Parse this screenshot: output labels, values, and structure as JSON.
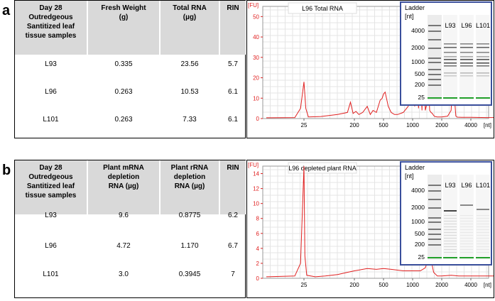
{
  "panels": [
    {
      "letter": "a",
      "table": {
        "headers": [
          "Day 28\nOutredgeous\nSantitized leaf\ntissue samples",
          "Fresh Weight\n(g)",
          "Total RNA\n(µg)",
          "RIN"
        ],
        "rows": [
          [
            "L93",
            "0.335",
            "23.56",
            "5.7"
          ],
          [
            "L96",
            "0.263",
            "10.53",
            "6.1"
          ],
          [
            "L101",
            "0.263",
            "7.33",
            "6.1"
          ]
        ]
      }
    },
    {
      "letter": "b",
      "table": {
        "headers": [
          "Day 28\nOutredgeous\nSantitized leaf\ntissue samples",
          "Plant mRNA\ndepletion\nRNA (µg)",
          "Plant rRNA\ndepletion\nRNA (µg)",
          "RIN"
        ],
        "rows": [
          [
            "L93",
            "9.6",
            "0.8775",
            "6.2"
          ],
          [
            "L96",
            "4.72",
            "1.170",
            "6.7"
          ],
          [
            "L101",
            "3.0",
            "0.3945",
            "7"
          ]
        ]
      }
    }
  ],
  "chart_data": [
    {
      "type": "line",
      "title": "L96 Total RNA",
      "ylabel": "[FU]",
      "xlabel": "[nt]",
      "ylim": [
        0,
        55
      ],
      "yticks": [
        0,
        10,
        20,
        30,
        40,
        50
      ],
      "xticks": [
        "25",
        "200",
        "500",
        "1000",
        "2000",
        "4000"
      ],
      "line_color": "#e02020",
      "series": [
        {
          "x": [
            10,
            20,
            23,
            25,
            27,
            30,
            50,
            100,
            150,
            170,
            190,
            210,
            230,
            260,
            300,
            330,
            360,
            400,
            450,
            480,
            500,
            520,
            560,
            600,
            650,
            700,
            800,
            900,
            950,
            1000,
            1050,
            1100,
            1150,
            1200,
            1250,
            1300,
            1350,
            1400,
            1450,
            1500,
            1550,
            1600,
            1650,
            1700,
            1800,
            2000,
            2300,
            2500,
            2650,
            2700,
            2750,
            2800,
            2900,
            3200,
            4000,
            6000,
            8500
          ],
          "values": [
            0.4,
            0.5,
            5,
            18,
            5,
            0.8,
            1,
            2,
            3,
            8,
            2.5,
            3.5,
            2,
            3,
            6,
            2,
            4,
            3,
            9,
            10,
            12,
            13,
            6,
            3,
            2,
            2,
            3,
            6,
            15,
            38,
            6,
            33,
            5,
            23,
            4,
            52,
            4,
            7,
            20,
            4,
            3,
            2.5,
            1.5,
            1,
            0.8,
            0.8,
            1.2,
            4,
            27,
            20,
            6,
            1.2,
            0.7,
            0.6,
            0.6,
            0.5,
            0.5
          ]
        }
      ],
      "inset": {
        "title": "Ladder",
        "unit": "[nt]",
        "lane_labels": [
          "L93",
          "L96",
          "L101"
        ],
        "ladder_labels": [
          "4000",
          "2000",
          "1000",
          "500",
          "200",
          "25"
        ]
      }
    },
    {
      "type": "line",
      "title": "L96 depleted plant RNA",
      "ylabel": "[FU]",
      "xlabel": "[nt]",
      "ylim": [
        0,
        15
      ],
      "yticks": [
        0,
        2,
        4,
        6,
        8,
        10,
        12,
        14
      ],
      "xticks": [
        "25",
        "200",
        "500",
        "1000",
        "2000",
        "4000"
      ],
      "line_color": "#e02020",
      "series": [
        {
          "x": [
            10,
            20,
            23,
            25,
            26,
            28,
            40,
            60,
            100,
            150,
            200,
            300,
            400,
            500,
            600,
            800,
            1000,
            1200,
            1350,
            1450,
            1500,
            1550,
            1650,
            1800,
            2000,
            2500,
            3000,
            4000,
            6000,
            8500
          ],
          "values": [
            0.2,
            0.3,
            2,
            15,
            3,
            0.4,
            0.2,
            0.3,
            0.5,
            0.8,
            1,
            1.3,
            1.2,
            1.3,
            1.2,
            1,
            1,
            1,
            1.4,
            2.5,
            3.4,
            2.5,
            0.8,
            0.3,
            0.3,
            0.4,
            0.3,
            0.3,
            0.3,
            0.3
          ]
        }
      ],
      "inset": {
        "title": "Ladder",
        "unit": "[nt]",
        "lane_labels": [
          "L93",
          "L96",
          "L101"
        ],
        "ladder_labels": [
          "4000",
          "2000",
          "1000",
          "500",
          "200",
          "25"
        ]
      }
    }
  ]
}
